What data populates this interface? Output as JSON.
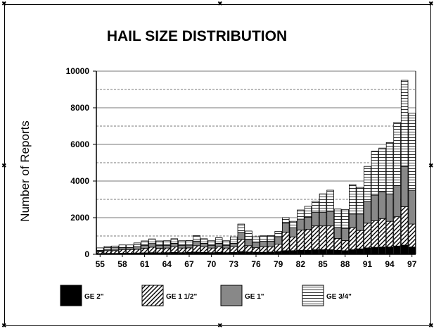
{
  "chart_data": {
    "type": "bar",
    "stacked": true,
    "title": "HAIL SIZE DISTRIBUTION",
    "xlabel": "",
    "ylabel": "Number of Reports",
    "ylim": [
      0,
      10000
    ],
    "yticks": [
      0,
      2000,
      4000,
      6000,
      8000,
      10000
    ],
    "grid": "horizontal",
    "legend_position": "bottom",
    "categories": [
      "55",
      "56",
      "57",
      "58",
      "59",
      "60",
      "61",
      "62",
      "63",
      "64",
      "65",
      "66",
      "67",
      "68",
      "69",
      "70",
      "71",
      "72",
      "73",
      "74",
      "75",
      "76",
      "77",
      "78",
      "79",
      "80",
      "81",
      "82",
      "83",
      "84",
      "85",
      "86",
      "87",
      "88",
      "89",
      "90",
      "91",
      "92",
      "93",
      "94",
      "95",
      "96",
      "97"
    ],
    "x_tick_labels": [
      "55",
      "58",
      "61",
      "64",
      "67",
      "70",
      "73",
      "76",
      "79",
      "82",
      "85",
      "88",
      "91",
      "94",
      "97"
    ],
    "series": [
      {
        "name": "GE 2\"",
        "fill": "solid",
        "color": "#000000",
        "values": [
          40,
          50,
          50,
          60,
          60,
          70,
          80,
          90,
          80,
          90,
          100,
          90,
          100,
          120,
          100,
          90,
          100,
          90,
          100,
          150,
          120,
          110,
          110,
          120,
          150,
          200,
          200,
          220,
          220,
          250,
          250,
          250,
          220,
          200,
          250,
          300,
          350,
          380,
          400,
          400,
          450,
          500,
          400
        ]
      },
      {
        "name": "GE 1 1/2\"",
        "fill": "hatch",
        "color": "#000000",
        "values": [
          100,
          150,
          150,
          200,
          200,
          200,
          250,
          300,
          250,
          250,
          300,
          250,
          250,
          350,
          300,
          250,
          300,
          250,
          300,
          650,
          350,
          250,
          300,
          300,
          400,
          1000,
          750,
          1100,
          1150,
          1300,
          1300,
          1300,
          650,
          550,
          1200,
          1000,
          1350,
          1450,
          1550,
          1400,
          1600,
          2100,
          1250
        ]
      },
      {
        "name": "GE 1\"",
        "fill": "solid",
        "color": "#888888",
        "values": [
          60,
          80,
          100,
          100,
          100,
          150,
          150,
          200,
          150,
          150,
          200,
          150,
          150,
          250,
          200,
          150,
          200,
          150,
          200,
          400,
          350,
          300,
          300,
          300,
          350,
          500,
          500,
          600,
          650,
          750,
          750,
          800,
          600,
          650,
          750,
          900,
          1200,
          1400,
          1450,
          1500,
          1700,
          2200,
          1850
        ]
      },
      {
        "name": "GE 3/4\"",
        "fill": "horizontal",
        "color": "#ffffff",
        "values": [
          150,
          150,
          150,
          150,
          150,
          200,
          250,
          250,
          250,
          250,
          250,
          250,
          250,
          300,
          250,
          250,
          300,
          250,
          350,
          450,
          450,
          300,
          300,
          300,
          350,
          300,
          350,
          500,
          600,
          600,
          1000,
          1150,
          1000,
          1050,
          1600,
          1450,
          1900,
          2400,
          2400,
          2800,
          3450,
          4700,
          4200
        ]
      }
    ]
  }
}
